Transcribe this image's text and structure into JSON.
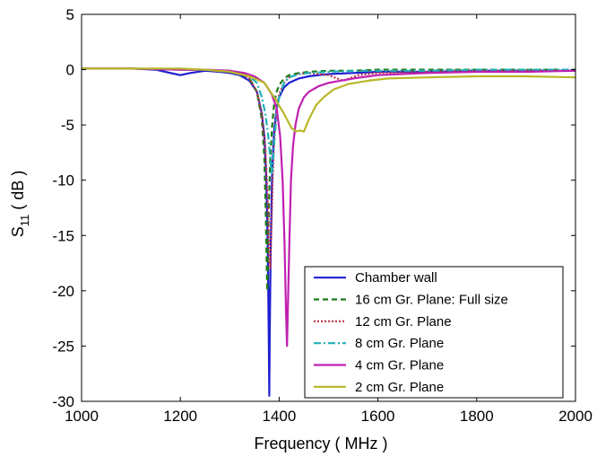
{
  "chart_data": {
    "type": "line",
    "title": "",
    "xlabel": "Frequency ( MHz )",
    "ylabel_main": "S",
    "ylabel_sub": "11",
    "ylabel_rest": " ( dB )",
    "xlim": [
      1000,
      2000
    ],
    "ylim": [
      -30,
      5
    ],
    "xticks": [
      1000,
      1200,
      1400,
      1600,
      1800,
      2000
    ],
    "yticks": [
      5,
      0,
      -5,
      -10,
      -15,
      -20,
      -25,
      -30
    ],
    "grid": false,
    "legend_position": "bottom-right",
    "series": [
      {
        "name": "Chamber wall",
        "color": "#1f1fd0",
        "style": "solid",
        "x": [
          1000,
          1100,
          1150,
          1180,
          1200,
          1220,
          1250,
          1280,
          1300,
          1320,
          1340,
          1355,
          1365,
          1370,
          1374,
          1377,
          1379,
          1380,
          1381,
          1383,
          1386,
          1390,
          1395,
          1400,
          1410,
          1420,
          1440,
          1460,
          1480,
          1500,
          1550,
          1600,
          1700,
          1800,
          1900,
          2000
        ],
        "y": [
          0.1,
          0.1,
          0.0,
          -0.3,
          -0.5,
          -0.3,
          -0.1,
          -0.2,
          -0.3,
          -0.5,
          -1.0,
          -2.0,
          -4.0,
          -6.0,
          -10.0,
          -16.0,
          -24.0,
          -29.5,
          -24.0,
          -16.0,
          -9.0,
          -5.5,
          -3.5,
          -2.5,
          -1.6,
          -1.2,
          -0.8,
          -0.6,
          -0.5,
          -0.4,
          -0.3,
          -0.2,
          -0.2,
          -0.1,
          -0.1,
          -0.1
        ]
      },
      {
        "name": "16 cm Gr. Plane: Full size",
        "color": "#1a7a1a",
        "style": "dashed",
        "x": [
          1000,
          1100,
          1200,
          1250,
          1300,
          1320,
          1340,
          1355,
          1365,
          1370,
          1373,
          1375,
          1376,
          1377,
          1379,
          1382,
          1386,
          1390,
          1395,
          1400,
          1410,
          1420,
          1440,
          1460,
          1500,
          1550,
          1600,
          1700,
          1800,
          1900,
          2000
        ],
        "y": [
          0.1,
          0.1,
          0.0,
          0.0,
          -0.2,
          -0.3,
          -0.8,
          -2.0,
          -4.5,
          -8.0,
          -13.0,
          -18.0,
          -20.0,
          -18.0,
          -13.0,
          -8.0,
          -5.0,
          -3.0,
          -2.0,
          -1.4,
          -0.8,
          -0.5,
          -0.3,
          -0.2,
          -0.1,
          -0.1,
          0.0,
          0.0,
          0.0,
          0.0,
          0.0
        ]
      },
      {
        "name": "12 cm Gr. Plane",
        "color": "#c0304a",
        "style": "dotted",
        "x": [
          1000,
          1100,
          1200,
          1250,
          1300,
          1320,
          1340,
          1355,
          1365,
          1372,
          1377,
          1380,
          1382,
          1384,
          1387,
          1390,
          1395,
          1400,
          1410,
          1420,
          1440,
          1460,
          1500,
          1530,
          1560,
          1600,
          1700,
          1800,
          1900,
          2000
        ],
        "y": [
          0.1,
          0.1,
          0.0,
          0.0,
          -0.2,
          -0.3,
          -0.8,
          -2.0,
          -4.0,
          -7.0,
          -12.0,
          -17.0,
          -18.0,
          -15.0,
          -10.0,
          -6.5,
          -3.5,
          -2.2,
          -1.2,
          -0.7,
          -0.4,
          -0.3,
          -0.5,
          -1.0,
          -0.5,
          -0.3,
          -0.2,
          -0.1,
          -0.1,
          -0.1
        ]
      },
      {
        "name": "8 cm Gr. Plane",
        "color": "#20b0b8",
        "style": "dashdot",
        "x": [
          1000,
          1100,
          1200,
          1250,
          1300,
          1320,
          1340,
          1355,
          1365,
          1372,
          1378,
          1382,
          1385,
          1388,
          1391,
          1395,
          1400,
          1410,
          1420,
          1440,
          1460,
          1500,
          1550,
          1600,
          1700,
          1800,
          1900,
          2000
        ],
        "y": [
          0.1,
          0.1,
          0.0,
          0.0,
          -0.1,
          -0.3,
          -0.6,
          -1.2,
          -2.5,
          -4.0,
          -6.0,
          -8.0,
          -9.5,
          -8.0,
          -6.0,
          -4.0,
          -2.5,
          -1.2,
          -0.7,
          -0.4,
          -0.3,
          -0.2,
          -0.1,
          -0.1,
          -0.1,
          0.0,
          0.0,
          0.0
        ]
      },
      {
        "name": "4 cm Gr. Plane",
        "color": "#c020b0",
        "style": "solid",
        "x": [
          1000,
          1100,
          1200,
          1250,
          1300,
          1330,
          1350,
          1370,
          1385,
          1395,
          1402,
          1407,
          1411,
          1414,
          1416,
          1418,
          1421,
          1424,
          1428,
          1433,
          1440,
          1450,
          1460,
          1480,
          1500,
          1550,
          1600,
          1700,
          1800,
          1900,
          2000
        ],
        "y": [
          0.1,
          0.1,
          0.0,
          0.0,
          -0.1,
          -0.3,
          -0.6,
          -1.2,
          -2.2,
          -3.5,
          -6.0,
          -10.0,
          -16.0,
          -22.0,
          -25.0,
          -21.0,
          -15.0,
          -10.0,
          -7.0,
          -5.0,
          -3.5,
          -2.5,
          -2.0,
          -1.5,
          -1.2,
          -0.8,
          -0.5,
          -0.3,
          -0.2,
          -0.2,
          -0.1
        ]
      },
      {
        "name": "2 cm Gr. Plane",
        "color": "#b8b82a",
        "style": "solid",
        "x": [
          1000,
          1100,
          1200,
          1250,
          1300,
          1340,
          1370,
          1390,
          1410,
          1425,
          1435,
          1442,
          1450,
          1460,
          1475,
          1490,
          1510,
          1540,
          1580,
          1620,
          1700,
          1800,
          1900,
          2000
        ],
        "y": [
          0.1,
          0.1,
          0.1,
          0.0,
          -0.2,
          -0.6,
          -1.2,
          -2.5,
          -4.0,
          -5.3,
          -5.6,
          -5.5,
          -5.6,
          -4.5,
          -3.2,
          -2.5,
          -1.8,
          -1.3,
          -1.0,
          -0.8,
          -0.7,
          -0.6,
          -0.6,
          -0.7
        ]
      }
    ]
  }
}
